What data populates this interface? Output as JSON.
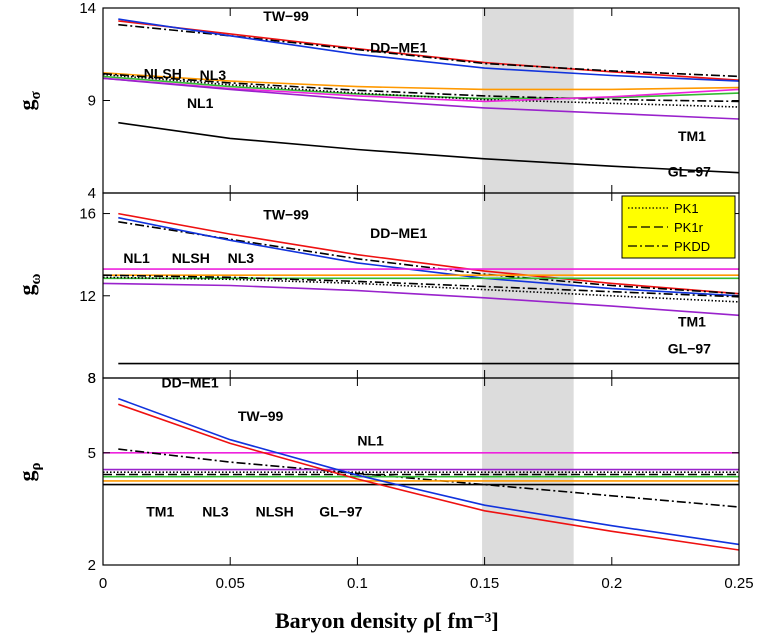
{
  "chart_data": {
    "type": "line",
    "xlabel": "Baryon density ρ[ fm⁻³]",
    "xlim": [
      0,
      0.25
    ],
    "xticks": [
      "0",
      "0.05",
      "0.1",
      "0.15",
      "0.2",
      "0.25"
    ],
    "shaded_region": [
      0.149,
      0.185
    ],
    "legend": {
      "placement": "top-right of middle panel",
      "entries": [
        {
          "label": "PK1",
          "style": "dotted"
        },
        {
          "label": "PK1r",
          "style": "dashed"
        },
        {
          "label": "PKDD",
          "style": "dashdot"
        }
      ]
    },
    "colors": {
      "red": "#ee1111",
      "blue": "#1133dd",
      "orange": "#ff9900",
      "green": "#33bb33",
      "magenta": "#ee22dd",
      "purple": "#9922cc",
      "black": "#000000",
      "yellow": "#ffff00",
      "shade": "#dcdcdc"
    },
    "panels": [
      {
        "ylabel": "g",
        "ylabel_sub": "σ",
        "ylim": [
          4,
          14
        ],
        "yticks": [
          "4",
          "9",
          "14"
        ],
        "annotations": [
          {
            "text": "TW−99",
            "x": 0.063,
            "y": 13.3
          },
          {
            "text": "DD−ME1",
            "x": 0.105,
            "y": 11.6
          },
          {
            "text": "NLSH",
            "x": 0.016,
            "y": 10.2
          },
          {
            "text": "NL3",
            "x": 0.038,
            "y": 10.1
          },
          {
            "text": "NL1",
            "x": 0.033,
            "y": 8.6
          },
          {
            "text": "TM1",
            "x": 0.226,
            "y": 6.8
          },
          {
            "text": "GL−97",
            "x": 0.222,
            "y": 4.9
          }
        ],
        "series": [
          {
            "color": "red",
            "style": "solid",
            "x": [
              0.006,
              0.05,
              0.1,
              0.15,
              0.2,
              0.25
            ],
            "y": [
              13.3,
              12.6,
              11.8,
              11.05,
              10.55,
              10.1
            ]
          },
          {
            "color": "black",
            "style": "dashdot",
            "x": [
              0.006,
              0.05,
              0.1,
              0.15,
              0.2,
              0.25
            ],
            "y": [
              13.1,
              12.5,
              11.75,
              11.0,
              10.6,
              10.3
            ]
          },
          {
            "color": "blue",
            "style": "solid",
            "x": [
              0.006,
              0.05,
              0.1,
              0.15,
              0.2,
              0.25
            ],
            "y": [
              13.4,
              12.5,
              11.5,
              10.75,
              10.35,
              10.05
            ]
          },
          {
            "color": "orange",
            "style": "solid",
            "x": [
              0.0,
              0.05,
              0.1,
              0.15,
              0.2,
              0.25
            ],
            "y": [
              10.5,
              10.05,
              9.75,
              9.6,
              9.6,
              9.7
            ]
          },
          {
            "color": "green",
            "style": "solid",
            "x": [
              0.0,
              0.05,
              0.1,
              0.15,
              0.2,
              0.25
            ],
            "y": [
              10.3,
              9.75,
              9.35,
              9.1,
              9.15,
              9.4
            ]
          },
          {
            "color": "black",
            "style": "dotted",
            "x": [
              0.0,
              0.05,
              0.1,
              0.15,
              0.2,
              0.25
            ],
            "y": [
              10.4,
              9.85,
              9.4,
              9.05,
              8.85,
              8.65
            ]
          },
          {
            "color": "black",
            "style": "dashdot",
            "x": [
              0.0,
              0.05,
              0.1,
              0.15,
              0.2,
              0.25
            ],
            "y": [
              10.45,
              9.95,
              9.55,
              9.25,
              9.05,
              8.95
            ]
          },
          {
            "color": "magenta",
            "style": "solid",
            "x": [
              0.0,
              0.05,
              0.1,
              0.15,
              0.2,
              0.25
            ],
            "y": [
              10.2,
              9.65,
              9.25,
              8.95,
              9.2,
              9.6
            ]
          },
          {
            "color": "purple",
            "style": "solid",
            "x": [
              0.0,
              0.05,
              0.1,
              0.15,
              0.2,
              0.25
            ],
            "y": [
              10.2,
              9.6,
              9.05,
              8.6,
              8.3,
              8.0
            ]
          },
          {
            "color": "black",
            "style": "solid",
            "x": [
              0.006,
              0.05,
              0.1,
              0.15,
              0.2,
              0.25
            ],
            "y": [
              7.8,
              6.95,
              6.35,
              5.85,
              5.45,
              5.1
            ]
          }
        ]
      },
      {
        "ylabel": "g",
        "ylabel_sub": "ω",
        "ylim": [
          8,
          17
        ],
        "yticks": [
          "8",
          "12",
          "16"
        ],
        "annotations": [
          {
            "text": "TW−99",
            "x": 0.063,
            "y": 15.7
          },
          {
            "text": "DD−ME1",
            "x": 0.105,
            "y": 14.8
          },
          {
            "text": "NL1",
            "x": 0.008,
            "y": 13.6
          },
          {
            "text": "NLSH",
            "x": 0.027,
            "y": 13.6
          },
          {
            "text": "NL3",
            "x": 0.049,
            "y": 13.6
          },
          {
            "text": "TM1",
            "x": 0.226,
            "y": 10.5
          },
          {
            "text": "GL−97",
            "x": 0.222,
            "y": 9.2
          }
        ],
        "series": [
          {
            "color": "red",
            "style": "solid",
            "x": [
              0.006,
              0.05,
              0.1,
              0.15,
              0.2,
              0.25
            ],
            "y": [
              16.0,
              15.0,
              14.0,
              13.2,
              12.6,
              12.1
            ]
          },
          {
            "color": "black",
            "style": "dashdot",
            "x": [
              0.006,
              0.05,
              0.1,
              0.15,
              0.2,
              0.25
            ],
            "y": [
              15.6,
              14.75,
              13.8,
              13.05,
              12.5,
              12.1
            ]
          },
          {
            "color": "blue",
            "style": "solid",
            "x": [
              0.006,
              0.05,
              0.1,
              0.15,
              0.2,
              0.25
            ],
            "y": [
              15.8,
              14.7,
              13.6,
              12.85,
              12.35,
              12.0
            ]
          },
          {
            "color": "magenta",
            "style": "solid",
            "x": [
              0.0,
              0.05,
              0.1,
              0.15,
              0.2,
              0.25
            ],
            "y": [
              13.3,
              13.3,
              13.3,
              13.3,
              13.3,
              13.3
            ]
          },
          {
            "color": "orange",
            "style": "solid",
            "x": [
              0.0,
              0.05,
              0.1,
              0.15,
              0.2,
              0.25
            ],
            "y": [
              13.0,
              13.0,
              13.0,
              13.0,
              13.0,
              13.0
            ]
          },
          {
            "color": "green",
            "style": "solid",
            "x": [
              0.0,
              0.05,
              0.1,
              0.15,
              0.2,
              0.25
            ],
            "y": [
              12.85,
              12.85,
              12.85,
              12.85,
              12.85,
              12.85
            ]
          },
          {
            "color": "black",
            "style": "dotted",
            "x": [
              0.0,
              0.05,
              0.1,
              0.15,
              0.2,
              0.25
            ],
            "y": [
              12.9,
              12.8,
              12.6,
              12.3,
              12.0,
              11.7
            ]
          },
          {
            "color": "black",
            "style": "dashdot",
            "x": [
              0.0,
              0.05,
              0.1,
              0.15,
              0.2,
              0.25
            ],
            "y": [
              13.0,
              12.9,
              12.7,
              12.45,
              12.2,
              11.95
            ]
          },
          {
            "color": "purple",
            "style": "solid",
            "x": [
              0.0,
              0.05,
              0.1,
              0.15,
              0.2,
              0.25
            ],
            "y": [
              12.6,
              12.5,
              12.25,
              11.9,
              11.5,
              11.05
            ]
          },
          {
            "color": "black",
            "style": "solid",
            "x": [
              0.006,
              0.05,
              0.1,
              0.15,
              0.2,
              0.25
            ],
            "y": [
              8.7,
              8.7,
              8.7,
              8.7,
              8.7,
              8.7
            ]
          }
        ]
      },
      {
        "ylabel": "g",
        "ylabel_sub": "ρ",
        "ylim": [
          2,
          7
        ],
        "yticks": [
          "2",
          "5",
          "8"
        ],
        "annotations": [
          {
            "text": "DD−ME1",
            "x": 0.023,
            "y": 6.75
          },
          {
            "text": "TW−99",
            "x": 0.053,
            "y": 5.85
          },
          {
            "text": "NL1",
            "x": 0.1,
            "y": 5.2
          },
          {
            "text": "TM1",
            "x": 0.017,
            "y": 3.3
          },
          {
            "text": "NL3",
            "x": 0.039,
            "y": 3.3
          },
          {
            "text": "NLSH",
            "x": 0.06,
            "y": 3.3
          },
          {
            "text": "GL−97",
            "x": 0.085,
            "y": 3.3
          }
        ],
        "series": [
          {
            "color": "magenta",
            "style": "solid",
            "x": [
              0.0,
              0.05,
              0.1,
              0.15,
              0.2,
              0.25
            ],
            "y": [
              5.0,
              5.0,
              5.0,
              5.0,
              5.0,
              5.0
            ]
          },
          {
            "color": "black",
            "style": "dashdot",
            "x": [
              0.006,
              0.05,
              0.1,
              0.15,
              0.2,
              0.25
            ],
            "y": [
              5.1,
              4.75,
              4.45,
              4.15,
              3.85,
              3.55
            ]
          },
          {
            "color": "purple",
            "style": "solid",
            "x": [
              0.0,
              0.05,
              0.1,
              0.15,
              0.2,
              0.25
            ],
            "y": [
              4.55,
              4.55,
              4.55,
              4.55,
              4.55,
              4.55
            ]
          },
          {
            "color": "black",
            "style": "dotted",
            "x": [
              0.0,
              0.05,
              0.1,
              0.15,
              0.2,
              0.25
            ],
            "y": [
              4.48,
              4.48,
              4.48,
              4.48,
              4.48,
              4.48
            ]
          },
          {
            "color": "black",
            "style": "dashed",
            "x": [
              0.0,
              0.05,
              0.1,
              0.15,
              0.2,
              0.25
            ],
            "y": [
              4.42,
              4.42,
              4.42,
              4.42,
              4.42,
              4.42
            ]
          },
          {
            "color": "green",
            "style": "solid",
            "x": [
              0.0,
              0.05,
              0.1,
              0.15,
              0.2,
              0.25
            ],
            "y": [
              4.36,
              4.36,
              4.36,
              4.36,
              4.36,
              4.36
            ]
          },
          {
            "color": "orange",
            "style": "solid",
            "x": [
              0.0,
              0.05,
              0.1,
              0.15,
              0.2,
              0.25
            ],
            "y": [
              4.25,
              4.25,
              4.25,
              4.25,
              4.25,
              4.25
            ]
          },
          {
            "color": "black",
            "style": "solid",
            "x": [
              0.0,
              0.05,
              0.1,
              0.15,
              0.2,
              0.25
            ],
            "y": [
              4.15,
              4.15,
              4.15,
              4.15,
              4.15,
              4.15
            ]
          },
          {
            "color": "blue",
            "style": "solid",
            "x": [
              0.006,
              0.05,
              0.1,
              0.15,
              0.2,
              0.25
            ],
            "y": [
              6.45,
              5.35,
              4.4,
              3.6,
              3.05,
              2.55
            ]
          },
          {
            "color": "red",
            "style": "solid",
            "x": [
              0.006,
              0.05,
              0.1,
              0.15,
              0.2,
              0.25
            ],
            "y": [
              6.3,
              5.25,
              4.3,
              3.45,
              2.9,
              2.4
            ]
          }
        ]
      }
    ]
  }
}
